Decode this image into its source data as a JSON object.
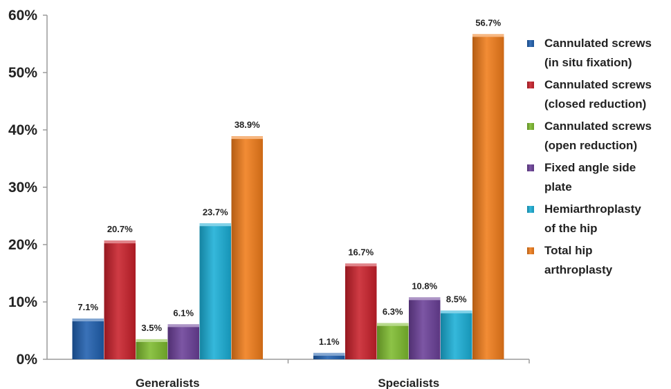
{
  "chart_data": {
    "type": "bar",
    "categories": [
      "Generalists",
      "Specialists"
    ],
    "ylim": [
      0,
      60
    ],
    "y_ticks": [
      "0%",
      "10%",
      "20%",
      "30%",
      "40%",
      "50%",
      "60%"
    ],
    "grid": false,
    "legend_position": "right",
    "series": [
      {
        "name": "Cannulated screws (in situ fixation)",
        "legend_lines": [
          "Cannulated screws",
          "(in situ fixation)"
        ],
        "color": "#1f5fae",
        "values": [
          7.1,
          1.1
        ],
        "labels": [
          "7.1%",
          "1.1%"
        ]
      },
      {
        "name": "Cannulated screws (closed reduction)",
        "legend_lines": [
          "Cannulated screws",
          "(closed reduction)"
        ],
        "color": "#c8202a",
        "values": [
          20.7,
          16.7
        ],
        "labels": [
          "20.7%",
          "16.7%"
        ]
      },
      {
        "name": "Cannulated screws (open reduction)",
        "legend_lines": [
          "Cannulated screws",
          "(open reduction)"
        ],
        "color": "#7dbb2e",
        "values": [
          3.5,
          6.3
        ],
        "labels": [
          "3.5%",
          "6.3%"
        ]
      },
      {
        "name": "Fixed angle side plate",
        "legend_lines": [
          "Fixed angle side",
          "plate"
        ],
        "color": "#6a3f98",
        "values": [
          6.1,
          10.8
        ],
        "labels": [
          "6.1%",
          "10.8%"
        ]
      },
      {
        "name": "Hemiarthroplasty of the hip",
        "legend_lines": [
          "Hemiarthroplasty",
          "of the hip"
        ],
        "color": "#1aaed6",
        "values": [
          23.7,
          8.5
        ],
        "labels": [
          "23.7%",
          "8.5%"
        ]
      },
      {
        "name": "Total hip arthroplasty",
        "legend_lines": [
          "Total hip",
          "arthroplasty"
        ],
        "color": "#f07c1a",
        "values": [
          38.9,
          56.7
        ],
        "labels": [
          "38.9%",
          "56.7%"
        ]
      }
    ]
  }
}
